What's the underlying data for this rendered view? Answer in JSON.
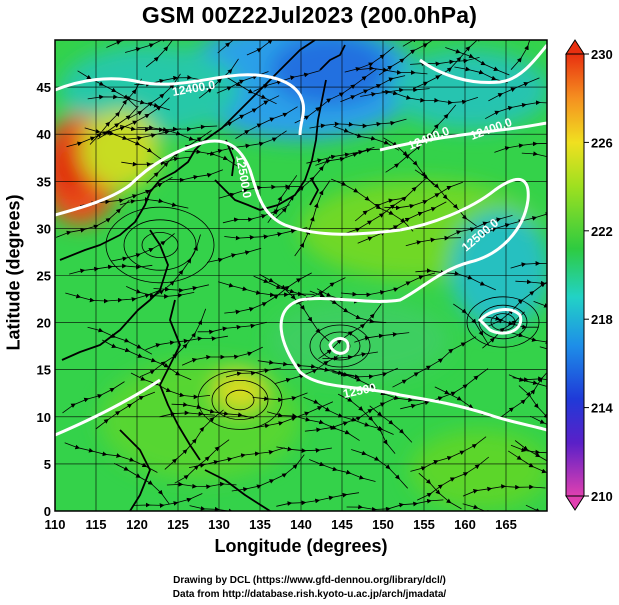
{
  "title": "GSM 00Z22Jul2023 (200.0hPa)",
  "x_axis": {
    "label": "Longitude (degrees)",
    "range": [
      110,
      170
    ],
    "ticks": [
      "110",
      "115",
      "120",
      "125",
      "130",
      "135",
      "140",
      "145",
      "150",
      "155",
      "160",
      "165"
    ]
  },
  "y_axis": {
    "label": "Latitude  (degrees)",
    "range": [
      0,
      50
    ],
    "ticks": [
      "0",
      "5",
      "10",
      "15",
      "20",
      "25",
      "30",
      "35",
      "40",
      "45"
    ]
  },
  "colorbar": {
    "range": [
      210,
      230
    ],
    "ticks": [
      "210",
      "214",
      "218",
      "222",
      "226",
      "230"
    ],
    "colors": [
      "#e040b0",
      "#5a20c8",
      "#1f3ad8",
      "#1e8ee8",
      "#22d2c6",
      "#2ecb40",
      "#9ee020",
      "#f0e020",
      "#f59020",
      "#e83010"
    ]
  },
  "contours": [
    {
      "label": "12400.0"
    },
    {
      "label": "12500.0"
    },
    {
      "label": "12500.0"
    },
    {
      "label": "12500"
    },
    {
      "label": "12400.0"
    },
    {
      "label": "12400.0"
    }
  ],
  "credits": {
    "line1": "Drawing by DCL (https://www.gfd-dennou.org/library/dcl/)",
    "line2": "Data from http://database.rish.kyoto-u.ac.jp/arch/jmadata/"
  }
}
